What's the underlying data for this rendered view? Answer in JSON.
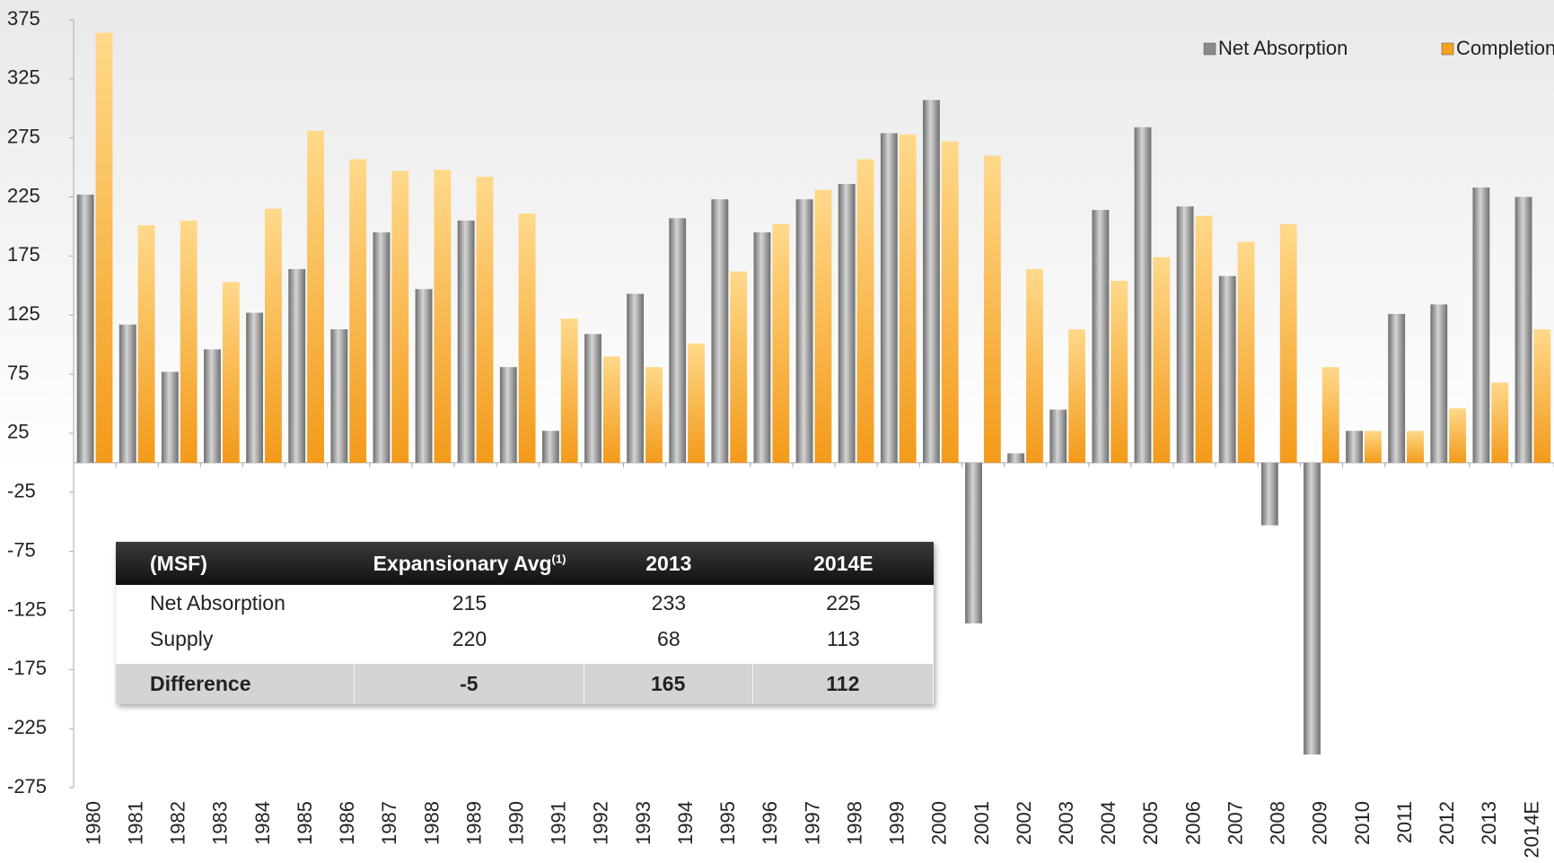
{
  "chart_data": {
    "type": "bar",
    "categories": [
      "1980",
      "1981",
      "1982",
      "1983",
      "1984",
      "1985",
      "1986",
      "1987",
      "1988",
      "1989",
      "1990",
      "1991",
      "1992",
      "1993",
      "1994",
      "1995",
      "1996",
      "1997",
      "1998",
      "1999",
      "2000",
      "2001",
      "2002",
      "2003",
      "2004",
      "2005",
      "2006",
      "2007",
      "2008",
      "2009",
      "2010",
      "2011",
      "2012",
      "2013",
      "2014E"
    ],
    "series": [
      {
        "name": "Net Absorption",
        "color": "#8a8a8a",
        "values": [
          227,
          117,
          77,
          96,
          127,
          164,
          113,
          195,
          147,
          205,
          81,
          27,
          109,
          143,
          207,
          223,
          195,
          223,
          236,
          279,
          307,
          -136,
          8,
          45,
          214,
          284,
          217,
          158,
          -53,
          -247,
          27,
          126,
          134,
          233,
          225
        ]
      },
      {
        "name": "Completions",
        "color": "#f5a21e",
        "values": [
          364,
          201,
          205,
          153,
          215,
          281,
          257,
          247,
          248,
          242,
          211,
          122,
          90,
          81,
          101,
          162,
          202,
          231,
          257,
          278,
          272,
          260,
          164,
          113,
          154,
          174,
          209,
          187,
          202,
          81,
          27,
          27,
          46,
          68,
          113
        ]
      }
    ],
    "ylim": [
      -275,
      375
    ],
    "yticks": [
      -275,
      -225,
      -175,
      -125,
      -75,
      -25,
      25,
      75,
      125,
      175,
      225,
      275,
      325,
      375
    ],
    "legend": "top-right",
    "grid": false
  },
  "table": {
    "header": [
      "(MSF)",
      "Expansionary Avg",
      "2013",
      "2014E"
    ],
    "header_note": "(1)",
    "rows": [
      [
        "Net Absorption",
        "215",
        "233",
        "225"
      ],
      [
        "Supply",
        "220",
        "68",
        "113"
      ],
      [
        "Difference",
        "-5",
        "165",
        "112"
      ]
    ]
  }
}
